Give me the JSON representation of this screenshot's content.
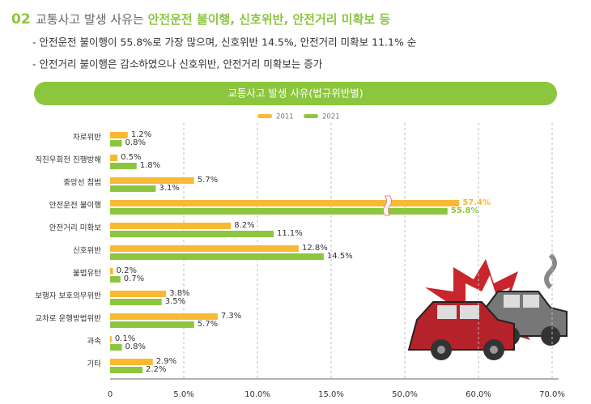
{
  "header": {
    "number": "02",
    "title_prefix": "교통사고 발생 사유는 ",
    "title_highlight": "안전운전 불이행, 신호위반, 안전거리 미확보 등"
  },
  "bullets": [
    "- 안전운전 불이행이 55.8%로 가장 많으며, 신호위반 14.5%, 안전거리 미확보 11.1% 순",
    "- 안전거리 불이행은 감소하였으나 신호위반, 안전거리 미확보는 증가"
  ],
  "chart_data": {
    "type": "hbar",
    "title": "교통사고 발생 사유(법규위반별)",
    "categories": [
      "차로위반",
      "직진우회전 진행방해",
      "중앙선 침범",
      "안전운전 불이행",
      "안전거리 미확보",
      "신호위반",
      "불법유턴",
      "보행자 보호의무위반",
      "교차로 운행방법위반",
      "과속",
      "기타"
    ],
    "series": [
      {
        "name": "2011",
        "color": "#f9b933",
        "values": [
          1.2,
          0.5,
          5.7,
          57.4,
          8.2,
          12.8,
          0.2,
          3.8,
          7.3,
          0.1,
          2.9
        ],
        "value_labels": [
          "1.2%",
          "0.5%",
          "5.7%",
          "57.4%",
          "8.2%",
          "12.8%",
          "0.2%",
          "3.8%",
          "7.3%",
          "0.1%",
          "2.9%"
        ]
      },
      {
        "name": "2021",
        "color": "#8cc63f",
        "values": [
          0.8,
          1.8,
          3.1,
          55.8,
          11.1,
          14.5,
          0.7,
          3.5,
          5.7,
          0.8,
          2.2
        ],
        "value_labels": [
          "0.8%",
          "1.8%",
          "3.1%",
          "55.8%",
          "11.1%",
          "14.5%",
          "0.7%",
          "3.5%",
          "5.7%",
          "0.8%",
          "2.2%"
        ]
      }
    ],
    "xlim": [
      0,
      70
    ],
    "xticks": [
      0,
      {
        "value": 5,
        "label": "5.0%"
      },
      {
        "value": 10,
        "label": "10.0%"
      },
      {
        "value": 15,
        "label": "15.0%"
      },
      {
        "value": 50,
        "label": "50.0%"
      },
      {
        "value": 60,
        "label": "60.0%"
      },
      {
        "value": 70,
        "label": "70.0%"
      }
    ],
    "axis_break": true,
    "grid": true,
    "legend": "top"
  }
}
